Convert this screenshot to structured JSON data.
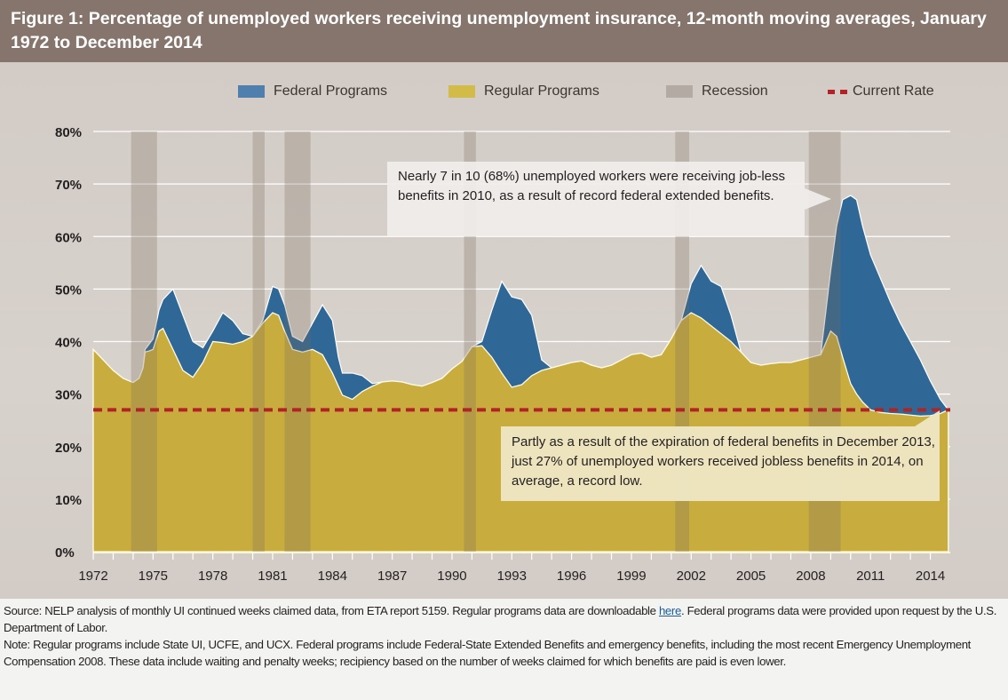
{
  "header": {
    "title": "Figure 1: Percentage of unemployed workers receiving unemployment insurance, 12-month moving averages, January 1972 to December 2014"
  },
  "legend": [
    {
      "label": "Federal Programs",
      "color": "#4f80ad",
      "kind": "area"
    },
    {
      "label": "Regular Programs",
      "color": "#d3bb4a",
      "kind": "area"
    },
    {
      "label": "Recession",
      "color": "#b3aaa3",
      "kind": "band"
    },
    {
      "label": "Current Rate",
      "color": "#b22227",
      "kind": "dashed-line"
    }
  ],
  "callouts": {
    "peak": "Nearly 7 in 10 (68%) unemployed workers were receiving job-less benefits in 2010, as a result of record federal extended benefits.",
    "low": "Partly as a result of the expiration of federal benefits in December 2013, just 27% of unemployed workers received jobless benefits in 2014, on average, a record low."
  },
  "footer": {
    "source_prefix": "Source: NELP analysis of monthly UI continued weeks claimed data, from ETA report 5159. Regular programs data are downloadable ",
    "source_link": "here",
    "source_suffix": ". Federal programs data were provided upon request by the U.S. Department of Labor.",
    "note": "Note: Regular programs include State UI, UCFE, and UCX. Federal programs include Federal-State Extended Benefits and emergency benefits, including the most recent Emergency Unemployment Compensation 2008. These data include waiting and penalty weeks; recipiency based on the number of weeks claimed for which benefits are paid is even lower."
  },
  "chart_data": {
    "type": "area",
    "title": "Percentage of unemployed workers receiving unemployment insurance, 12-month moving averages, January 1972 to December 2014",
    "xlabel": "",
    "ylabel": "",
    "xlim": [
      1972,
      2015
    ],
    "ylim": [
      0,
      80
    ],
    "grid": true,
    "legend_position": "top",
    "x_ticks": [
      "1972",
      "1975",
      "1978",
      "1981",
      "1984",
      "1987",
      "1990",
      "1993",
      "1996",
      "1999",
      "2002",
      "2005",
      "2008",
      "2011",
      "2014"
    ],
    "y_ticks": [
      "0%",
      "10%",
      "20%",
      "30%",
      "40%",
      "50%",
      "60%",
      "70%",
      "80%"
    ],
    "colors": {
      "federal": "#2f6796",
      "regular": "#c9ac3e",
      "recession": "#b2a79f",
      "current_rate": "#b22227"
    },
    "current_rate": 27,
    "recessions": [
      [
        1973.9,
        1975.2
      ],
      [
        1980.0,
        1980.6
      ],
      [
        1981.6,
        1982.9
      ],
      [
        1990.6,
        1991.2
      ],
      [
        2001.2,
        2001.9
      ],
      [
        2007.9,
        2009.5
      ]
    ],
    "x": [
      1972.0,
      1972.5,
      1973.0,
      1973.5,
      1974.0,
      1974.3,
      1974.5,
      1974.6,
      1974.8,
      1975.0,
      1975.3,
      1975.5,
      1976.0,
      1976.5,
      1977.0,
      1977.5,
      1978.0,
      1978.5,
      1979.0,
      1979.5,
      1980.0,
      1980.5,
      1981.0,
      1981.3,
      1981.6,
      1982.0,
      1982.5,
      1983.0,
      1983.5,
      1984.0,
      1984.3,
      1984.5,
      1985.0,
      1985.5,
      1986.0,
      1986.5,
      1987.0,
      1987.5,
      1988.0,
      1988.5,
      1989.0,
      1989.5,
      1990.0,
      1990.5,
      1991.0,
      1991.5,
      1992.0,
      1992.5,
      1993.0,
      1993.5,
      1994.0,
      1994.5,
      1995.0,
      1995.5,
      1996.0,
      1996.5,
      1997.0,
      1997.5,
      1998.0,
      1998.5,
      1999.0,
      1999.5,
      2000.0,
      2000.5,
      2001.0,
      2001.5,
      2002.0,
      2002.5,
      2003.0,
      2003.5,
      2004.0,
      2004.5,
      2005.0,
      2005.5,
      2006.0,
      2006.5,
      2007.0,
      2007.5,
      2008.0,
      2008.5,
      2009.0,
      2009.3,
      2009.6,
      2010.0,
      2010.3,
      2010.6,
      2011.0,
      2011.5,
      2012.0,
      2012.5,
      2013.0,
      2013.5,
      2014.0,
      2014.5,
      2014.9
    ],
    "series": [
      {
        "name": "Regular Programs",
        "values": [
          38.5,
          36.5,
          34.5,
          33.0,
          32.2,
          33.0,
          35.0,
          38.0,
          38.2,
          38.5,
          42.0,
          42.5,
          38.5,
          34.5,
          33.2,
          36.0,
          40.0,
          39.8,
          39.5,
          40.0,
          41.0,
          43.5,
          45.5,
          45.0,
          42.0,
          38.5,
          38.0,
          38.5,
          37.5,
          34.0,
          31.5,
          29.8,
          29.0,
          30.5,
          31.5,
          32.3,
          32.5,
          32.3,
          31.8,
          31.5,
          32.2,
          33.0,
          34.8,
          36.2,
          39.0,
          39.2,
          37.0,
          34.0,
          31.3,
          31.8,
          33.5,
          34.5,
          35.0,
          35.5,
          36.0,
          36.3,
          35.5,
          35.0,
          35.5,
          36.5,
          37.5,
          37.8,
          37.0,
          37.5,
          40.5,
          44.0,
          45.5,
          44.5,
          43.0,
          41.5,
          40.0,
          38.0,
          36.0,
          35.5,
          35.8,
          36.0,
          36.0,
          36.5,
          37.0,
          37.5,
          42.0,
          41.0,
          37.0,
          32.0,
          30.0,
          28.5,
          27.0,
          26.5,
          26.3,
          26.2,
          26.0,
          25.8,
          25.9,
          26.3,
          27.0
        ]
      },
      {
        "name": "Federal Programs (total incl. regular)",
        "values": [
          38.5,
          36.5,
          34.5,
          33.0,
          32.2,
          33.0,
          35.0,
          38.5,
          39.5,
          40.5,
          46.0,
          48.0,
          50.0,
          45.0,
          40.0,
          38.8,
          42.0,
          45.5,
          44.0,
          41.5,
          41.0,
          44.0,
          50.5,
          50.0,
          47.0,
          41.0,
          40.0,
          43.5,
          47.0,
          44.0,
          37.0,
          34.0,
          34.0,
          33.5,
          32.0,
          32.3,
          32.5,
          32.3,
          31.8,
          31.5,
          32.2,
          33.0,
          34.8,
          36.2,
          39.0,
          40.0,
          46.0,
          51.5,
          48.5,
          48.0,
          45.0,
          36.5,
          35.0,
          35.5,
          36.0,
          36.3,
          35.5,
          35.0,
          35.5,
          36.5,
          37.5,
          37.8,
          37.0,
          37.5,
          40.5,
          44.0,
          51.0,
          54.5,
          51.5,
          50.5,
          45.0,
          38.0,
          36.0,
          35.5,
          35.8,
          36.0,
          36.0,
          36.5,
          37.0,
          37.5,
          53.5,
          62.0,
          67.0,
          67.8,
          67.0,
          62.0,
          56.5,
          52.0,
          47.5,
          43.5,
          40.0,
          36.5,
          32.5,
          29.0,
          27.0
        ]
      }
    ]
  }
}
